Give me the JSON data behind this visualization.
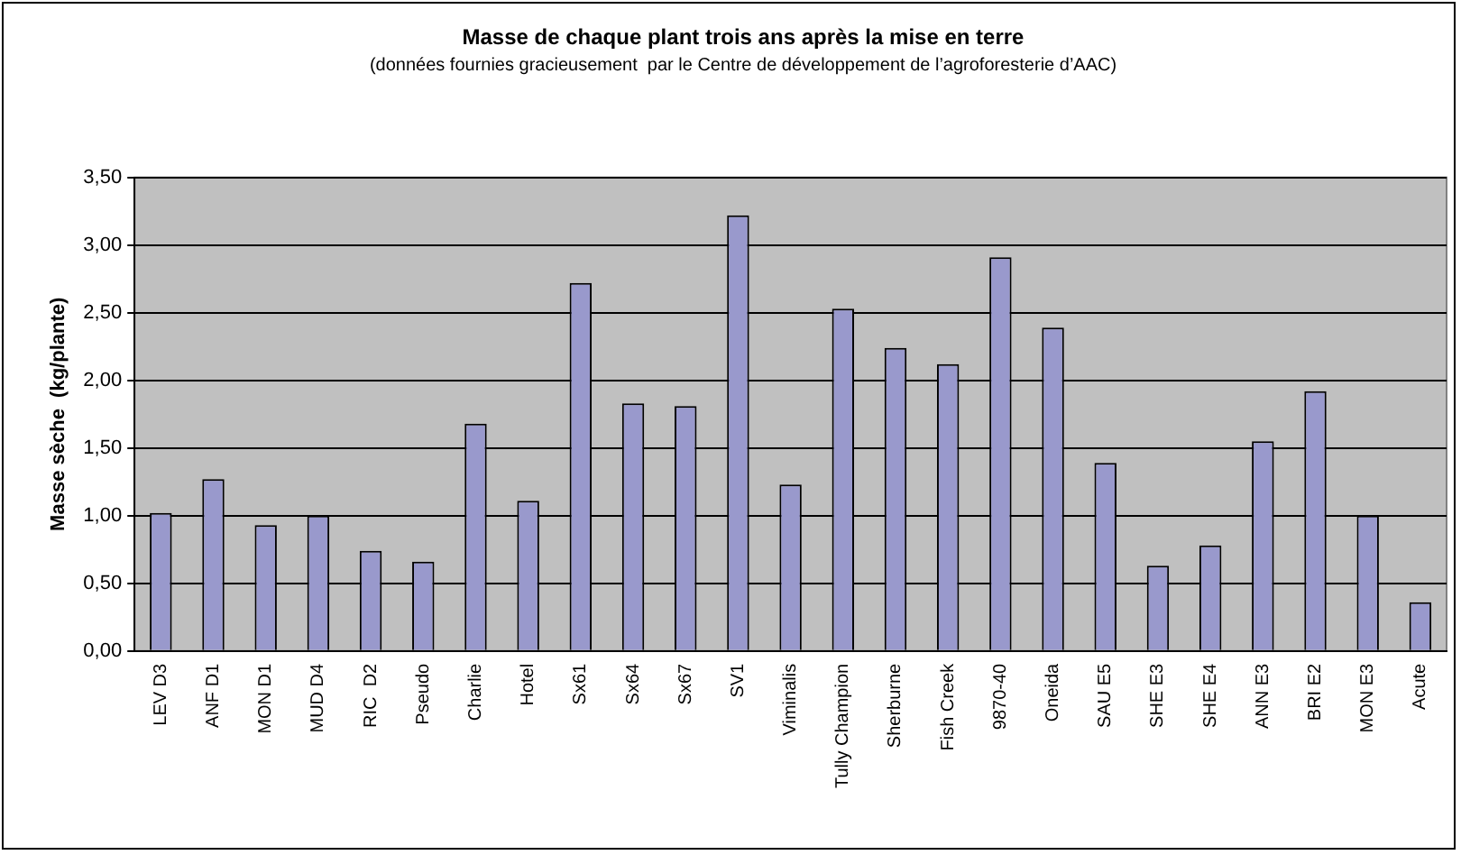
{
  "chart_data": {
    "type": "bar",
    "title": "Masse de chaque plant trois ans après la mise en terre",
    "subtitle": "(données fournies gracieusement  par le Centre de développement de l’agroforesterie d’AAC)",
    "ylabel": "Masse sèche  (kg/plante)",
    "categories": [
      "LEV D3",
      "ANF D1",
      "MON D1",
      "MUD D4",
      "RIC  D2",
      "Pseudo",
      "Charlie",
      "Hotel",
      "Sx61",
      "Sx64",
      "Sx67",
      "SV1",
      "Viminalis",
      "Tully Champion",
      "Sherburne",
      "Fish Creek",
      "9870-40",
      "Oneida",
      "SAU E5",
      "SHE E3",
      "SHE E4",
      "ANN E3",
      "BRI E2",
      "MON E3",
      "Acute"
    ],
    "values": [
      1.02,
      1.27,
      0.93,
      1.0,
      0.74,
      0.66,
      1.68,
      1.11,
      2.72,
      1.83,
      1.81,
      3.22,
      1.23,
      2.53,
      2.24,
      2.12,
      2.91,
      2.39,
      1.39,
      0.63,
      0.78,
      1.55,
      1.92,
      1.0,
      0.36
    ],
    "color": "#9999cc",
    "ylim": [
      0,
      3.5
    ],
    "yticks": [
      {
        "value": 0,
        "label": "0,00"
      },
      {
        "value": 0.5,
        "label": "0,50"
      },
      {
        "value": 1,
        "label": "1,00"
      },
      {
        "value": 1.5,
        "label": "1,50"
      },
      {
        "value": 2,
        "label": "2,00"
      },
      {
        "value": 2.5,
        "label": "2,50"
      },
      {
        "value": 3,
        "label": "3,00"
      },
      {
        "value": 3.5,
        "label": "3,50"
      }
    ],
    "grid": "y",
    "legend": false
  }
}
